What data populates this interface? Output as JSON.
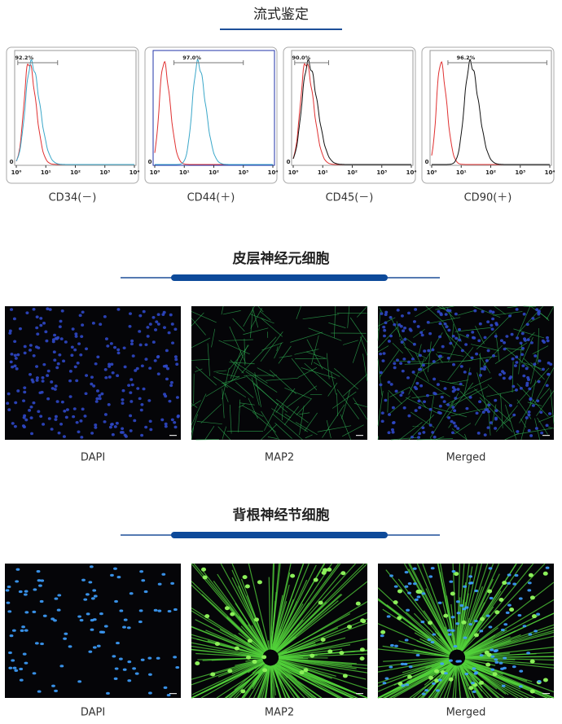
{
  "flow": {
    "title": "流式鉴定",
    "panels": [
      {
        "caption": "CD34(－)",
        "percent": "92.2%"
      },
      {
        "caption": "CD44(＋)",
        "percent": "97.0%"
      },
      {
        "caption": "CD45(－)",
        "percent": "90.0%"
      },
      {
        "caption": "CD90(＋)",
        "percent": "96.2%"
      }
    ],
    "ticks": [
      "10⁰",
      "10¹",
      "10²",
      "10³",
      "10⁴"
    ],
    "y_zero": "0"
  },
  "cortical": {
    "title": "皮层神经元细胞",
    "images": [
      {
        "label": "DAPI"
      },
      {
        "label": "MAP2"
      },
      {
        "label": "Merged"
      }
    ]
  },
  "drg": {
    "title": "背根神经节细胞",
    "images": [
      {
        "label": "DAPI"
      },
      {
        "label": "MAP2"
      },
      {
        "label": "Merged"
      }
    ]
  }
}
